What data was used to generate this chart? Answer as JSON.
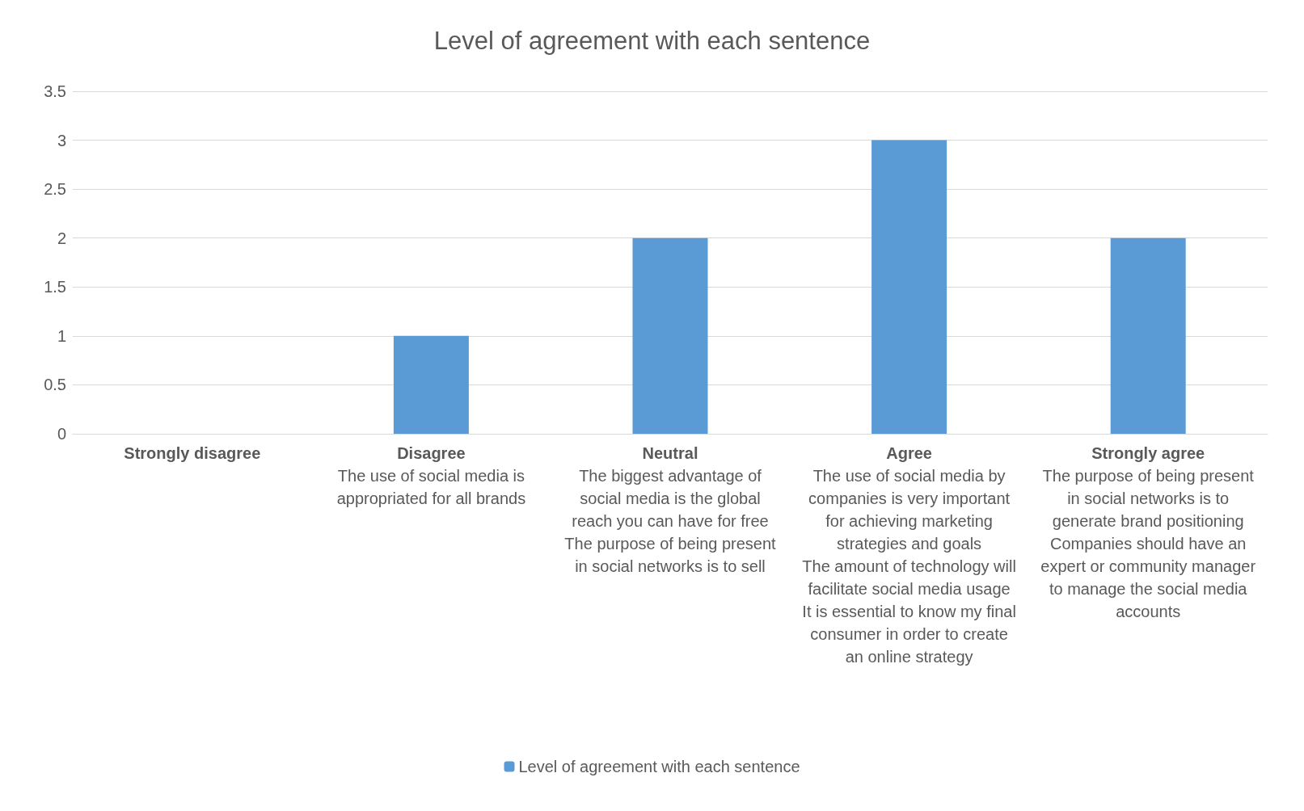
{
  "chart_data": {
    "type": "bar",
    "title": "Level of agreement with each sentence",
    "categories": [
      "Strongly disagree",
      "Disagree\nThe use of social media is appropriated for all brands",
      "Neutral\nThe biggest advantage of social media is the global reach you can have for free\nThe purpose of being present in social networks is to sell",
      "Agree\nThe use of social media by companies is very important for achieving marketing strategies and goals\nThe amount of technology will facilitate social media usage\nIt is essential to know my final consumer in order to create an online strategy",
      "Strongly agree\nThe purpose of being present in social networks is to generate brand positioning\nCompanies should have an expert or community manager to manage the social media accounts"
    ],
    "series": [
      {
        "name": "Level of agreement with each sentence",
        "color": "#5b9bd5",
        "values": [
          0,
          1,
          2,
          3,
          2
        ]
      }
    ],
    "ylim": [
      0,
      3.5
    ],
    "yticks": [
      0,
      0.5,
      1,
      1.5,
      2,
      2.5,
      3,
      3.5
    ],
    "grid": "y",
    "legend": "bottom"
  }
}
